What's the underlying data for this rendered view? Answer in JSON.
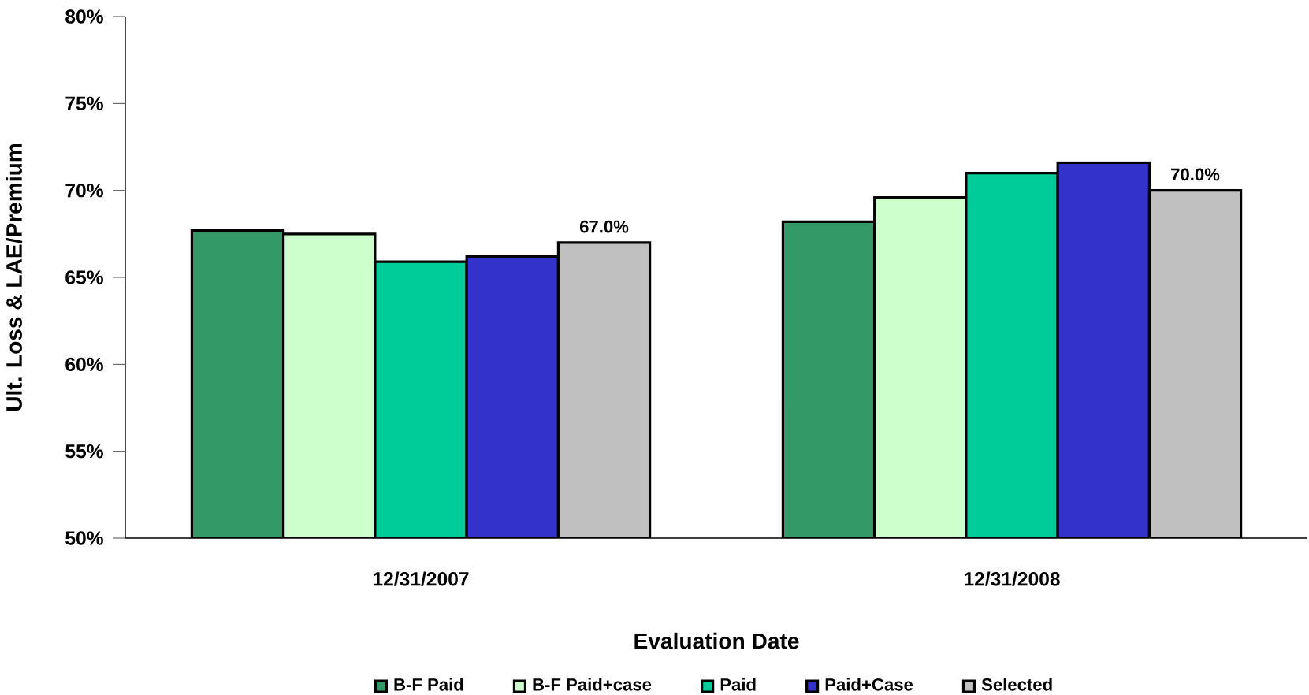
{
  "chart_data": {
    "type": "bar",
    "xlabel": "Evaluation Date",
    "ylabel": "Ult. Loss & LAE/Premium",
    "categories": [
      "12/31/2007",
      "12/31/2008"
    ],
    "series": [
      {
        "name": "B-F Paid",
        "color": "#339966",
        "values": [
          67.7,
          68.2
        ]
      },
      {
        "name": "B-F Paid+case",
        "color": "#ccffcc",
        "values": [
          67.5,
          69.6
        ]
      },
      {
        "name": "Paid",
        "color": "#00cc99",
        "values": [
          65.9,
          71.0
        ]
      },
      {
        "name": "Paid+Case",
        "color": "#3333cc",
        "values": [
          66.2,
          71.6
        ]
      },
      {
        "name": "Selected",
        "color": "#c0c0c0",
        "values": [
          67.0,
          70.0
        ],
        "value_labels": [
          "67.0%",
          "70.0%"
        ]
      }
    ],
    "ylim": [
      50,
      80
    ],
    "yticks": [
      {
        "value": 50,
        "label": "50%"
      },
      {
        "value": 55,
        "label": "55%"
      },
      {
        "value": 60,
        "label": "60%"
      },
      {
        "value": 65,
        "label": "65%"
      },
      {
        "value": 70,
        "label": "70%"
      },
      {
        "value": 75,
        "label": "75%"
      },
      {
        "value": 80,
        "label": "80%"
      }
    ],
    "grid": false,
    "legend": "bottom"
  }
}
